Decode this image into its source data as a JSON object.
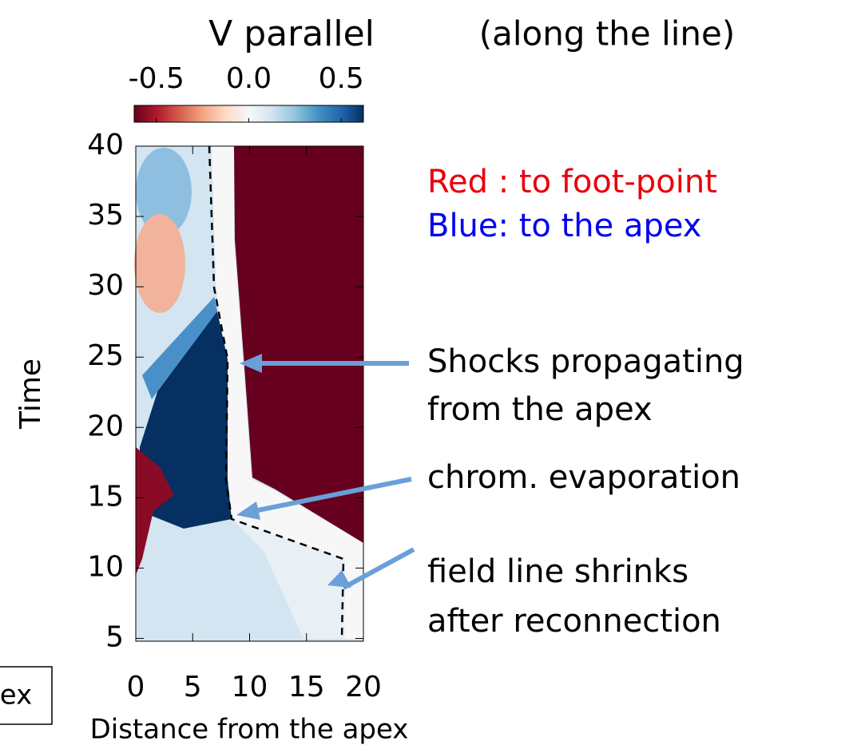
{
  "chart_data": {
    "type": "heatmap",
    "title": "V parallel",
    "subtitle": "(along the line)",
    "xlabel": "Distance from the apex",
    "ylabel": "Time",
    "xlim": [
      0,
      20
    ],
    "xticks": [
      0,
      5,
      10,
      15,
      20
    ],
    "ylim": [
      4.8,
      40
    ],
    "yticks": [
      5,
      10,
      15,
      20,
      25,
      30,
      35,
      40
    ],
    "colorbar": {
      "clim": [
        -0.62,
        0.62
      ],
      "ticks": [
        -0.5,
        {
          "value": 0,
          "label": "0.0"
        },
        0.5
      ],
      "colors": [
        "#67001f",
        "#b2182b",
        "#d6604d",
        "#f4a582",
        "#fddbc7",
        "#f7f7f7",
        "#d1e5f0",
        "#92c5de",
        "#4393c3",
        "#2166ac",
        "#053061"
      ]
    },
    "annotations": [
      {
        "text": "Red : to foot-point",
        "color": "#e8000b"
      },
      {
        "text": "Blue: to the apex",
        "color": "#0000f0"
      },
      {
        "text": "Shocks propagating",
        "color": "#000000"
      },
      {
        "text": "from the apex",
        "color": "#000000"
      },
      {
        "text": "chrom. evaporation",
        "color": "#000000"
      },
      {
        "text": "field line shrinks",
        "color": "#000000"
      },
      {
        "text": "after reconnection",
        "color": "#000000"
      }
    ],
    "cropped_box": "ex"
  }
}
